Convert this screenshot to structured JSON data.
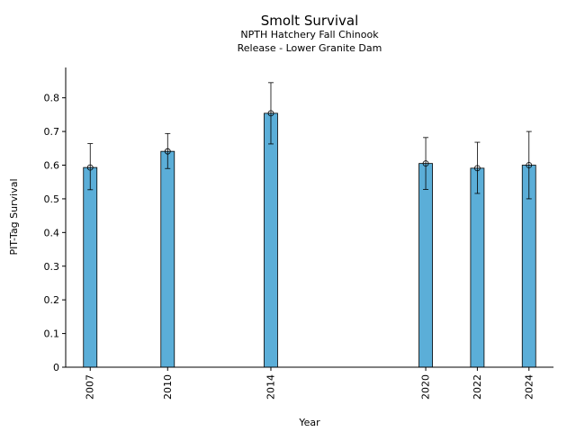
{
  "chart_data": {
    "type": "bar",
    "title": "Smolt Survival",
    "subtitle_lines": [
      "NPTH Hatchery Fall Chinook",
      "Release - Lower Granite Dam"
    ],
    "xlabel": "Year",
    "ylabel": "PIT-Tag Survival",
    "x": [
      2007,
      2010,
      2014,
      2020,
      2022,
      2024
    ],
    "categories": [
      "2007",
      "2010",
      "2014",
      "2020",
      "2022",
      "2024"
    ],
    "values": [
      0.593,
      0.641,
      0.754,
      0.605,
      0.591,
      0.6
    ],
    "error_low": [
      0.527,
      0.59,
      0.663,
      0.528,
      0.516,
      0.5
    ],
    "error_high": [
      0.664,
      0.694,
      0.845,
      0.682,
      0.668,
      0.7
    ],
    "yticks": [
      0,
      0.1,
      0.2,
      0.3,
      0.4,
      0.5,
      0.6,
      0.7,
      0.8
    ],
    "ytick_labels": [
      "0",
      "0.1",
      "0.2",
      "0.3",
      "0.4",
      "0.5",
      "0.6",
      "0.7",
      "0.8"
    ],
    "ylim": [
      0,
      0.89
    ],
    "xlim": [
      2006.05,
      2024.95
    ],
    "grid": false,
    "legend": "none",
    "colors": {
      "bar": "#5BAED8",
      "edge": "#000000",
      "text": "#000000"
    }
  }
}
